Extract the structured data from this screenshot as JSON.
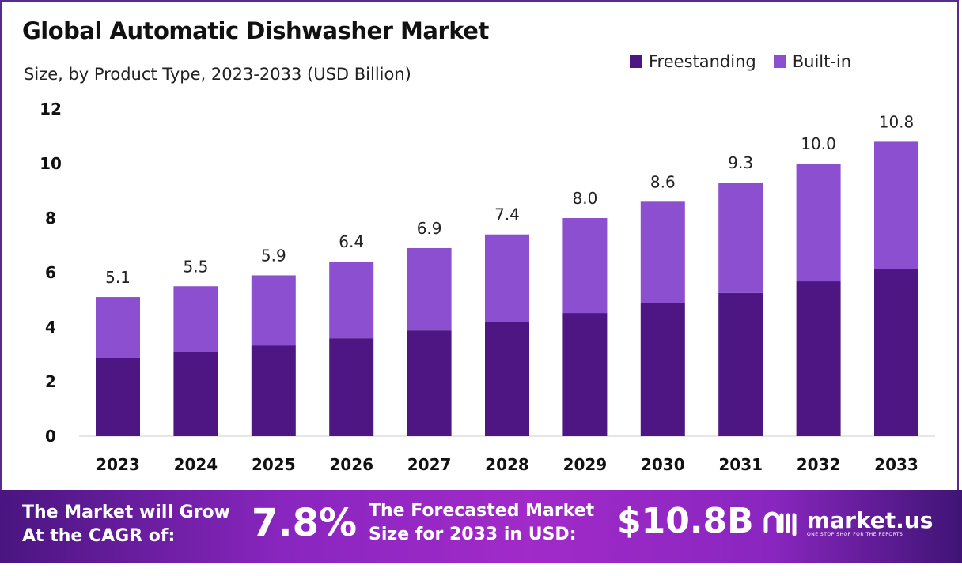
{
  "chart_data": {
    "type": "bar",
    "stacked": true,
    "title": "Global Automatic Dishwasher Market",
    "subtitle": "Size, by Product Type, 2023-2033 (USD Billion)",
    "xlabel": "",
    "ylabel": "",
    "ylim": [
      0,
      12
    ],
    "yticks": [
      0,
      2,
      4,
      6,
      8,
      10,
      12
    ],
    "grid": false,
    "legend_position": "top-right",
    "categories": [
      "2023",
      "2024",
      "2025",
      "2026",
      "2027",
      "2028",
      "2029",
      "2030",
      "2031",
      "2032",
      "2033"
    ],
    "series": [
      {
        "name": "Freestanding",
        "color": "#4e1683",
        "values": [
          2.87,
          3.1,
          3.33,
          3.59,
          3.88,
          4.2,
          4.52,
          4.87,
          5.25,
          5.68,
          6.12
        ]
      },
      {
        "name": "Built-in",
        "color": "#8b4fd0",
        "values": [
          2.23,
          2.4,
          2.57,
          2.81,
          3.02,
          3.2,
          3.48,
          3.73,
          4.05,
          4.32,
          4.68
        ]
      }
    ],
    "totals_labels": [
      "5.1",
      "5.5",
      "5.9",
      "6.4",
      "6.9",
      "7.4",
      "8.0",
      "8.6",
      "9.3",
      "10.0",
      "10.8"
    ]
  },
  "footer": {
    "cagr_text_1": "The Market will Grow",
    "cagr_text_2": "At the CAGR of:",
    "cagr_value": "7.8%",
    "forecast_text_1": "The Forecasted Market",
    "forecast_text_2": "Size for 2033 in USD:",
    "forecast_value": "$10.8B",
    "brand": "market.us",
    "tagline": "ONE STOP SHOP FOR THE REPORTS"
  }
}
